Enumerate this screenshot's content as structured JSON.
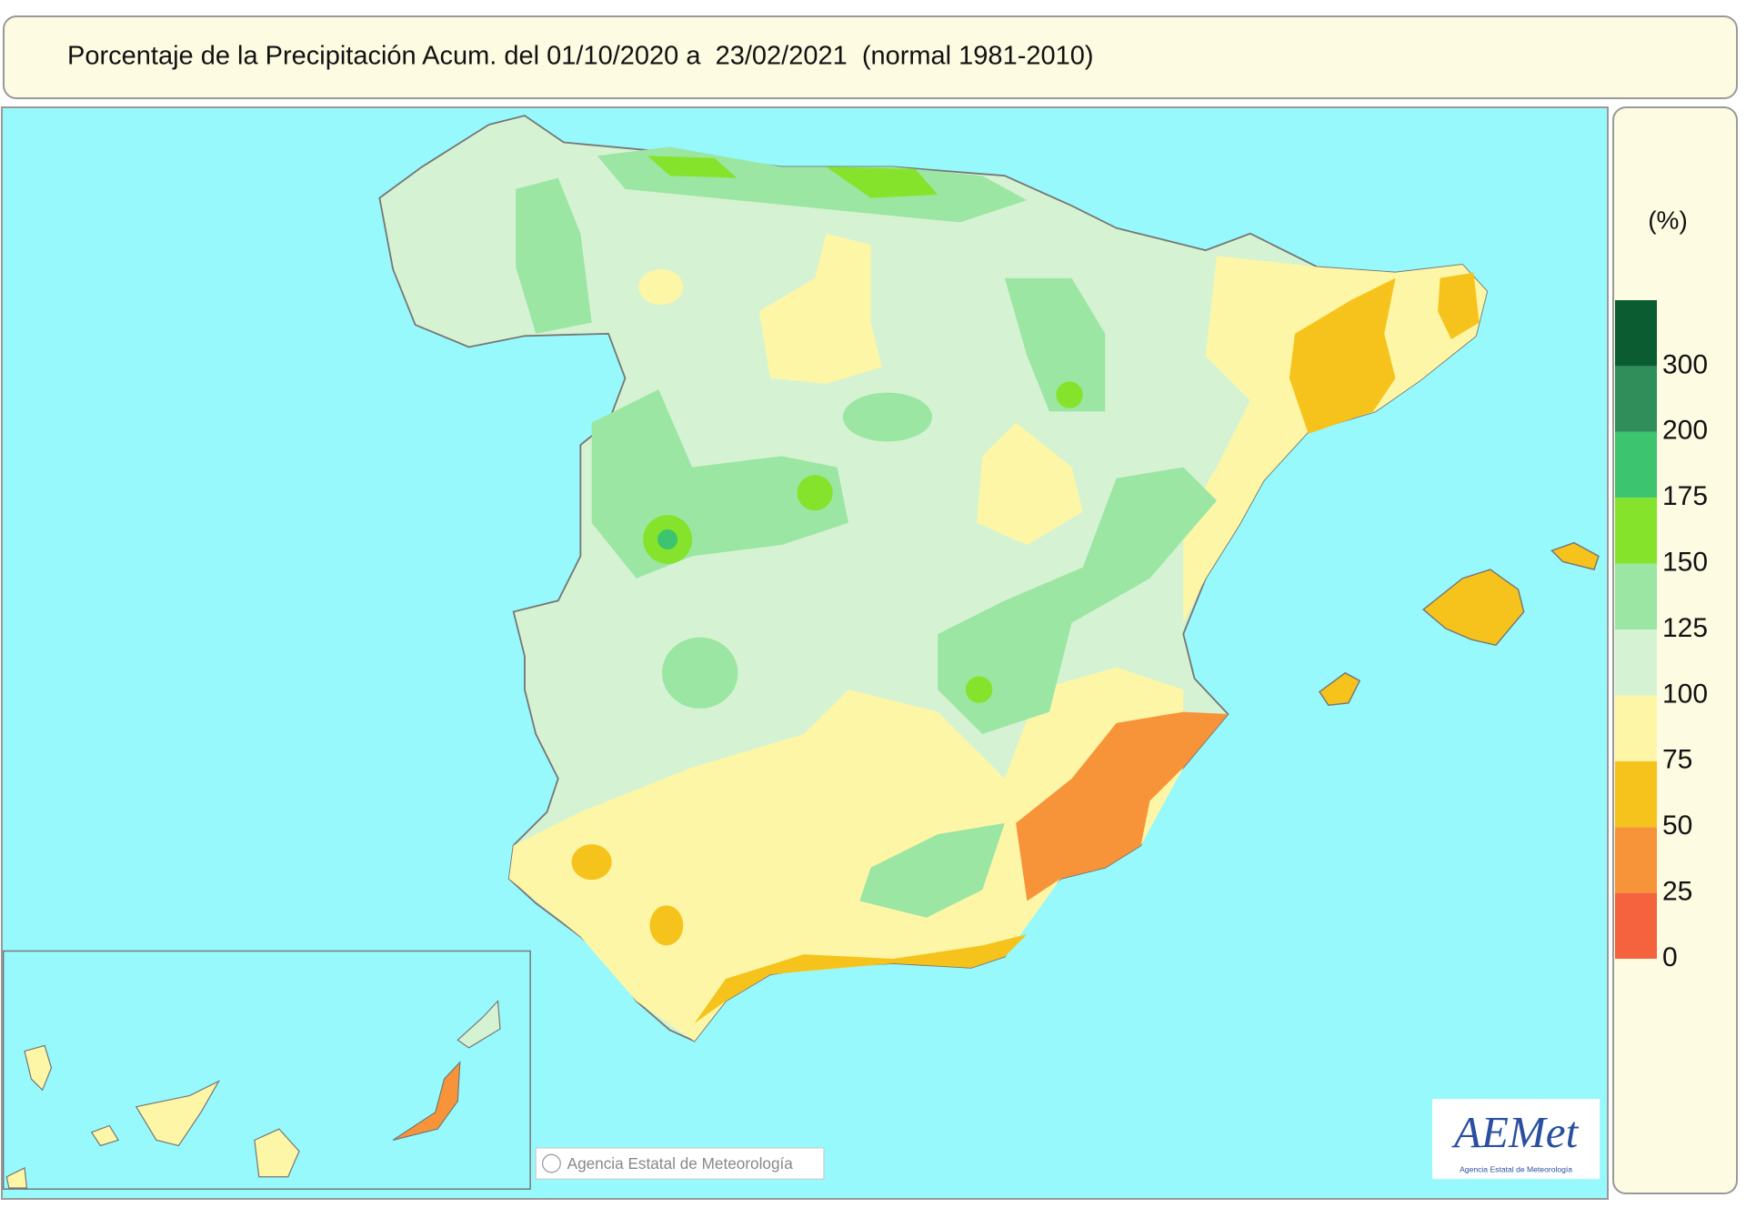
{
  "header": {
    "title": "Porcentaje de la Precipitación Acum. del 01/10/2020 a  23/02/2021  (normal 1981-2010)"
  },
  "legend": {
    "unit": "(%)",
    "ticks": [
      0,
      25,
      50,
      75,
      100,
      125,
      150,
      175,
      200,
      300
    ],
    "colors": [
      "#f4623e",
      "#f7943a",
      "#f6c31c",
      "#fdf6a6",
      "#d5f3d3",
      "#9ce6a4",
      "#86e32c",
      "#3cc46e",
      "#2f8e5a",
      "#0b5c30"
    ]
  },
  "map": {
    "credit": "Agencia Estatal de Meteorología",
    "logo": "AEMet",
    "logo_subtitle": "Agencia Estatal de Meteorología"
  }
}
